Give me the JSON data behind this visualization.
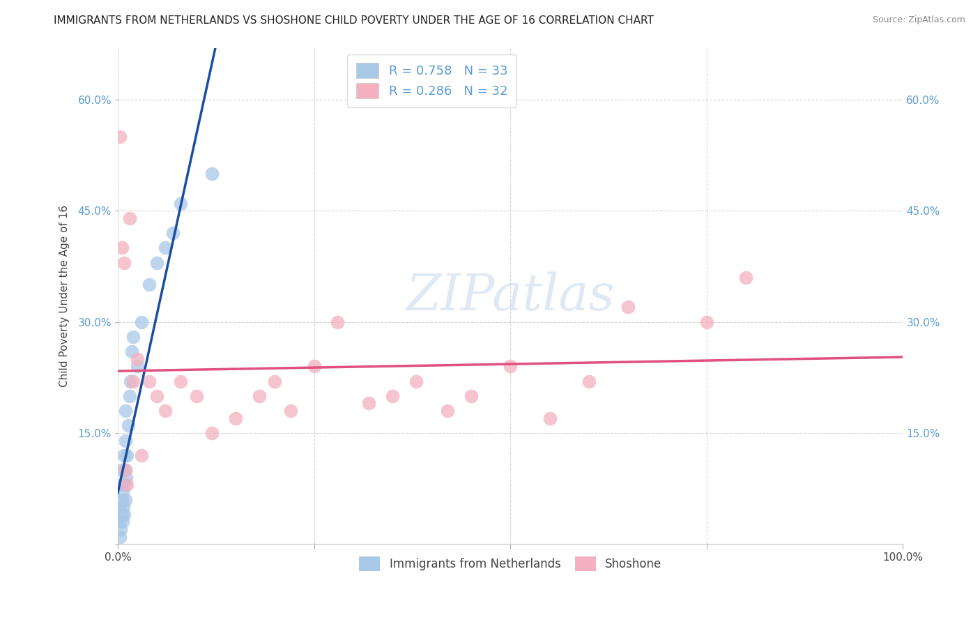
{
  "title": "IMMIGRANTS FROM NETHERLANDS VS SHOSHONE CHILD POVERTY UNDER THE AGE OF 16 CORRELATION CHART",
  "source": "Source: ZipAtlas.com",
  "ylabel": "Child Poverty Under the Age of 16",
  "x_min": 0.0,
  "x_max": 100.0,
  "y_min": 0.0,
  "y_max": 67.0,
  "y_ticks": [
    0.0,
    15.0,
    30.0,
    45.0,
    60.0
  ],
  "x_ticks": [
    0.0,
    25.0,
    50.0,
    75.0,
    100.0
  ],
  "x_tick_labels": [
    "0.0%",
    "",
    "",
    "",
    "100.0%"
  ],
  "y_tick_labels": [
    "",
    "15.0%",
    "30.0%",
    "45.0%",
    "60.0%"
  ],
  "watermark": "ZIPatlas",
  "legend_labels": [
    "Immigrants from Netherlands",
    "Shoshone"
  ],
  "blue_scatter_color": "#a8c8e8",
  "pink_scatter_color": "#f4b0c0",
  "blue_line_color": "#1a4fa0",
  "pink_line_color": "#e05080",
  "blue_tick_color": "#5b9bd5",
  "background_color": "#ffffff",
  "grid_color": "#cccccc",
  "title_fontsize": 11,
  "axis_label_fontsize": 11,
  "tick_fontsize": 11,
  "legend_fontsize": 13,
  "watermark_fontsize": 52,
  "watermark_color": "#c5d8ec",
  "watermark_alpha": 0.55,
  "blue_x": [
    0.2,
    0.3,
    0.3,
    0.4,
    0.4,
    0.5,
    0.5,
    0.5,
    0.6,
    0.6,
    0.7,
    0.8,
    0.8,
    0.9,
    1.0,
    1.0,
    1.0,
    1.0,
    1.1,
    1.2,
    1.3,
    1.5,
    1.6,
    1.8,
    2.0,
    2.5,
    3.0,
    4.0,
    5.0,
    6.0,
    7.0,
    8.0,
    12.0
  ],
  "blue_y": [
    3.0,
    1.0,
    5.0,
    2.0,
    8.0,
    4.0,
    6.0,
    10.0,
    3.0,
    7.0,
    5.0,
    12.0,
    4.0,
    8.0,
    6.0,
    10.0,
    14.0,
    18.0,
    9.0,
    12.0,
    16.0,
    20.0,
    22.0,
    26.0,
    28.0,
    24.0,
    30.0,
    35.0,
    38.0,
    40.0,
    42.0,
    46.0,
    50.0
  ],
  "pink_x": [
    0.3,
    0.5,
    0.8,
    1.0,
    1.2,
    1.5,
    2.0,
    2.5,
    3.0,
    4.0,
    5.0,
    6.0,
    8.0,
    10.0,
    12.0,
    15.0,
    18.0,
    20.0,
    22.0,
    25.0,
    28.0,
    32.0,
    35.0,
    38.0,
    42.0,
    45.0,
    50.0,
    55.0,
    60.0,
    65.0,
    75.0,
    80.0
  ],
  "pink_y": [
    55.0,
    40.0,
    38.0,
    10.0,
    8.0,
    44.0,
    22.0,
    25.0,
    12.0,
    22.0,
    20.0,
    18.0,
    22.0,
    20.0,
    15.0,
    17.0,
    20.0,
    22.0,
    18.0,
    24.0,
    30.0,
    19.0,
    20.0,
    22.0,
    18.0,
    20.0,
    24.0,
    17.0,
    22.0,
    32.0,
    30.0,
    36.0
  ],
  "R_blue": 0.758,
  "N_blue": 33,
  "R_pink": 0.286,
  "N_pink": 32
}
